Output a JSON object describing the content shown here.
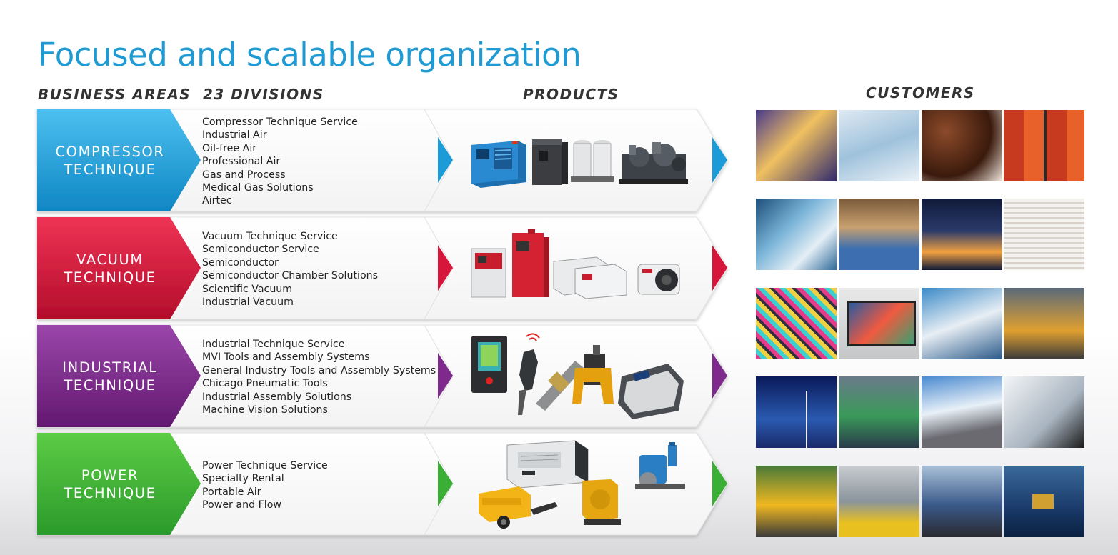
{
  "title": "Focused and scalable organization",
  "headers": {
    "business_areas": "BUSINESS AREAS",
    "divisions": "23 DIVISIONS",
    "products": "PRODUCTS",
    "customers": "CUSTOMERS"
  },
  "areas": [
    {
      "line1": "COMPRESSOR",
      "line2": "TECHNIQUE",
      "color": "#1b9bd7",
      "divisions": [
        "Compressor Technique Service",
        "Industrial Air",
        "Oil-free Air",
        "Professional Air",
        "Gas and Process",
        "Medical Gas Solutions",
        "Airtec"
      ]
    },
    {
      "line1": "VACUUM",
      "line2": "TECHNIQUE",
      "color": "#d6163a",
      "divisions": [
        "Vacuum Technique Service",
        "Semiconductor Service",
        "Semiconductor",
        "Semiconductor Chamber Solutions",
        "Scientific Vacuum",
        "Industrial Vacuum"
      ]
    },
    {
      "line1": "INDUSTRIAL",
      "line2": "TECHNIQUE",
      "color": "#7e2a8d",
      "divisions": [
        "Industrial Technique Service",
        "MVI Tools and Assembly Systems",
        "General Industry Tools and Assembly Systems",
        "Chicago Pneumatic Tools",
        "Industrial Assembly Solutions",
        "Machine Vision Solutions"
      ]
    },
    {
      "line1": "POWER",
      "line2": "TECHNIQUE",
      "color": "#3aae35",
      "divisions": [
        "Power Technique Service",
        "Specialty Rental",
        "Portable Air",
        "Power and Flow"
      ]
    }
  ]
}
